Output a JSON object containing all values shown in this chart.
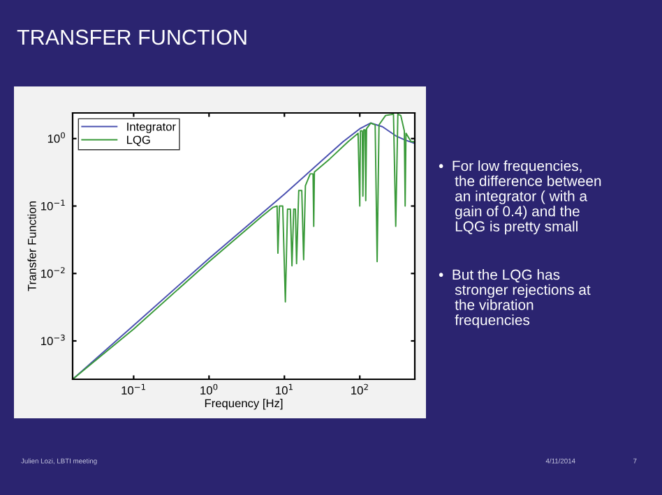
{
  "chart_data": {
    "type": "line",
    "title": "TRANSFER FUNCTION",
    "xlabel": "Frequency [Hz]",
    "ylabel": "Transfer Function",
    "log": "xy",
    "grid": false,
    "legend": "top left",
    "marker": "none",
    "line_style": "solid",
    "xlim": [
      0.0155,
      537
    ],
    "ylim": [
      0.00027,
      2.4
    ],
    "xticks": [
      {
        "value": 0.1,
        "label": "10$^{−1}$"
      },
      {
        "value": 1,
        "label": "10$^{0}$"
      },
      {
        "value": 10,
        "label": "10$^{1}$"
      },
      {
        "value": 100,
        "label": "10$^{2}$"
      }
    ],
    "yticks": [
      {
        "value": 0.001,
        "label": "10$^{−3}$"
      },
      {
        "value": 0.01,
        "label": "10$^{−2}$"
      },
      {
        "value": 0.1,
        "label": "10$^{−1}$"
      },
      {
        "value": 1,
        "label": "10$^{0}$"
      }
    ],
    "series": [
      {
        "name": "Integrator",
        "color": "#4a50b0",
        "x": [
          0.0155,
          0.1,
          1,
          10,
          30,
          60,
          100,
          140,
          200,
          300,
          400,
          537
        ],
        "values": [
          0.00027,
          0.0017,
          0.0167,
          0.15,
          0.45,
          0.9,
          1.4,
          1.7,
          1.5,
          1.1,
          0.95,
          0.85
        ]
      },
      {
        "name": "LQG",
        "color": "#3a9a3a",
        "x": [
          0.0155,
          0.1,
          1,
          5,
          7,
          8,
          8.2,
          8.6,
          9.5,
          10.3,
          11,
          12,
          12.6,
          13.3,
          14,
          14.5,
          15.5,
          17,
          18,
          19,
          22,
          24,
          24.5,
          25,
          40,
          70,
          95,
          100,
          102,
          108,
          110,
          113,
          118,
          120,
          123,
          140,
          160,
          170,
          180,
          220,
          280,
          300,
          320,
          350,
          390,
          400,
          410,
          480,
          537
        ],
        "values": [
          0.00027,
          0.0015,
          0.015,
          0.07,
          0.095,
          0.1,
          0.02,
          0.1,
          0.1,
          0.0038,
          0.09,
          0.09,
          0.013,
          0.09,
          0.09,
          0.014,
          0.17,
          0.17,
          0.016,
          0.2,
          0.3,
          0.3,
          0.05,
          0.32,
          0.5,
          0.9,
          1.2,
          0.1,
          1.3,
          1.3,
          0.14,
          1.35,
          1.35,
          0.12,
          1.4,
          1.7,
          1.6,
          0.015,
          1.6,
          2.2,
          2.3,
          0.05,
          2.3,
          2.2,
          1.3,
          0.1,
          1.2,
          0.9,
          0.9
        ]
      }
    ],
    "annotations": [
      "•  For low frequencies,\n    the difference between\n    an integrator ( with a\n    gain of 0.4) and the\n    LQG is pretty small",
      "•  But the LQG has\n    stronger rejections at\n    the vibration\n    frequencies",
      "Julien Lozi, LBTI meeting",
      "4/11/2014",
      "7"
    ]
  }
}
